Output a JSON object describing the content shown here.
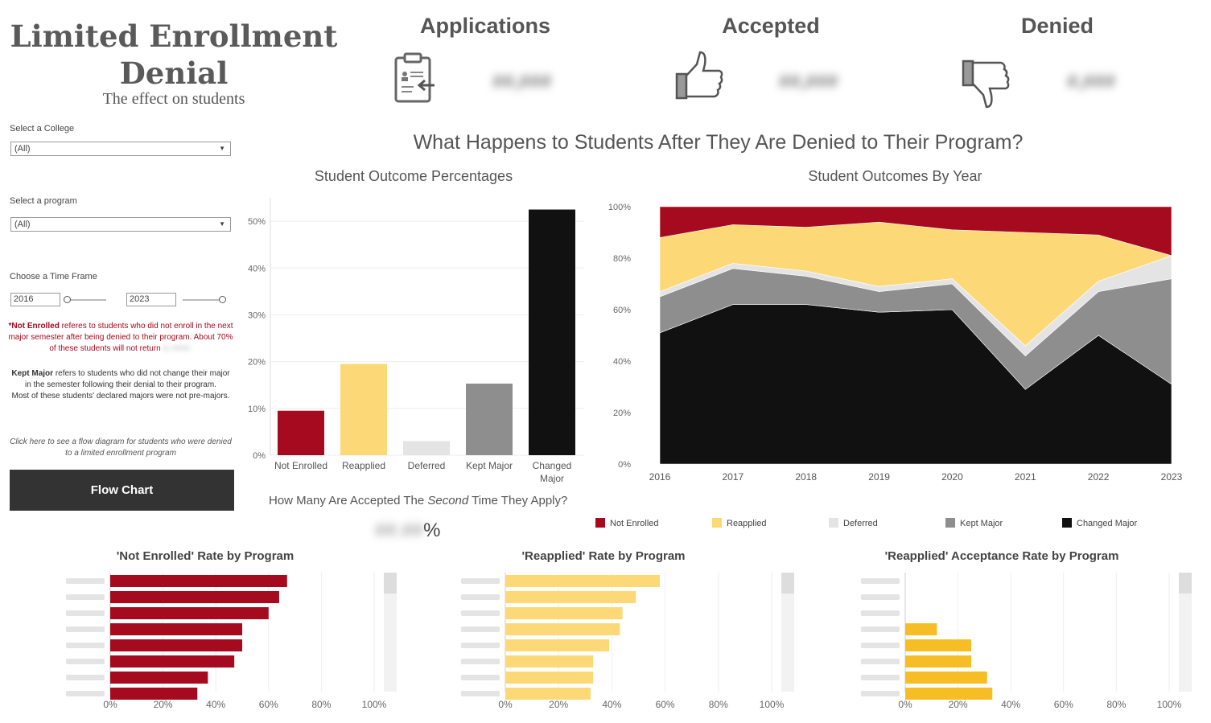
{
  "header": {
    "title_line1": "Limited Enrollment",
    "title_line2": "Denial",
    "subtitle": "The effect on students"
  },
  "kpis": [
    {
      "label": "Applications",
      "value": "##,###",
      "icon": "clipboard-icon"
    },
    {
      "label": "Accepted",
      "value": "##,###",
      "icon": "thumbs-up-icon"
    },
    {
      "label": "Denied",
      "value": "#,###",
      "icon": "thumbs-down-icon"
    }
  ],
  "filters": {
    "college_label": "Select a College",
    "college_value": "(All)",
    "program_label": "Select a program",
    "program_value": "(All)",
    "timeframe_label": "Choose a Time Frame",
    "start_year": "2016",
    "end_year": "2023"
  },
  "notes": {
    "not_enrolled_term": "*Not Enrolled",
    "not_enrolled_text": " referes to students who did not enroll in the next major semester after being denied to their program. About 70% of these students will not return",
    "not_enrolled_hidden": " to ####.",
    "kept_major_term": "Kept Major",
    "kept_major_text": " refers to students who did not change their major in the semester following their denial to their program.",
    "kept_major_text2": "Most of these students' declared majors were not pre-majors.",
    "flow_hint": "Click here to see a flow diagram for students who were denied to a limited enrollment program",
    "flow_button": "Flow Chart"
  },
  "main_question": "What Happens to Students After They Are Denied to Their Program?",
  "second_time": {
    "prefix": "How Many Are Accepted The ",
    "em": "Second",
    "suffix": " Time They Apply?",
    "value_hidden": "##.##",
    "value_suffix": "%"
  },
  "colors": {
    "not_enrolled": "#a50a1e",
    "reapplied": "#fdd876",
    "deferred": "#e4e4e4",
    "kept_major": "#8e8e8e",
    "changed_major": "#111111",
    "reapplied_accept": "#f7bd24"
  },
  "chart_data": [
    {
      "type": "bar",
      "title": "Student Outcome Percentages",
      "categories": [
        "Not Enrolled",
        "Reapplied",
        "Deferred",
        "Kept Major",
        "Changed Major"
      ],
      "values": [
        9.5,
        19.5,
        3,
        15.3,
        52.5
      ],
      "ylim": [
        0,
        55
      ],
      "yticks": [
        "0%",
        "10%",
        "20%",
        "30%",
        "40%",
        "50%"
      ],
      "ytick_values": [
        0,
        10,
        20,
        30,
        40,
        50
      ]
    },
    {
      "type": "area",
      "title": "Student Outcomes By Year",
      "stacked": "percent",
      "x": [
        "2016",
        "2017",
        "2018",
        "2019",
        "2020",
        "2021",
        "2022",
        "2023"
      ],
      "series": [
        {
          "name": "Changed Major",
          "values": [
            51,
            62,
            62,
            59,
            60,
            29,
            50,
            31
          ]
        },
        {
          "name": "Kept Major",
          "values": [
            14,
            14,
            11,
            8,
            10,
            13,
            17,
            41
          ]
        },
        {
          "name": "Deferred",
          "values": [
            2,
            2,
            2,
            2,
            2,
            4,
            4,
            9
          ]
        },
        {
          "name": "Reapplied",
          "values": [
            21,
            15,
            17,
            25,
            19,
            44,
            18,
            0
          ]
        },
        {
          "name": "Not Enrolled",
          "values": [
            12,
            7,
            8,
            6,
            9,
            10,
            11,
            19
          ]
        }
      ],
      "yticks": [
        "0%",
        "20%",
        "40%",
        "60%",
        "80%",
        "100%"
      ],
      "ytick_values": [
        0,
        20,
        40,
        60,
        80,
        100
      ],
      "legend_position": "bottom"
    },
    {
      "type": "bar",
      "orientation": "horizontal",
      "title": "'Not Enrolled' Rate by Program",
      "values": [
        67,
        64,
        60,
        50,
        50,
        47,
        37,
        33
      ],
      "xticks": [
        "0%",
        "20%",
        "40%",
        "60%",
        "80%",
        "100%"
      ],
      "xtick_values": [
        0,
        20,
        40,
        60,
        80,
        100
      ]
    },
    {
      "type": "bar",
      "orientation": "horizontal",
      "title": "'Reapplied' Rate by Program",
      "values": [
        58,
        49,
        44,
        43,
        39,
        33,
        33,
        32
      ],
      "xticks": [
        "0%",
        "20%",
        "40%",
        "60%",
        "80%",
        "100%"
      ],
      "xtick_values": [
        0,
        20,
        40,
        60,
        80,
        100
      ]
    },
    {
      "type": "bar",
      "orientation": "horizontal",
      "title": "'Reapplied' Acceptance Rate by Program",
      "values": [
        0,
        0,
        0,
        12,
        25,
        25,
        31,
        33
      ],
      "xticks": [
        "0%",
        "20%",
        "40%",
        "60%",
        "80%",
        "100%"
      ],
      "xtick_values": [
        0,
        20,
        40,
        60,
        80,
        100
      ]
    }
  ]
}
